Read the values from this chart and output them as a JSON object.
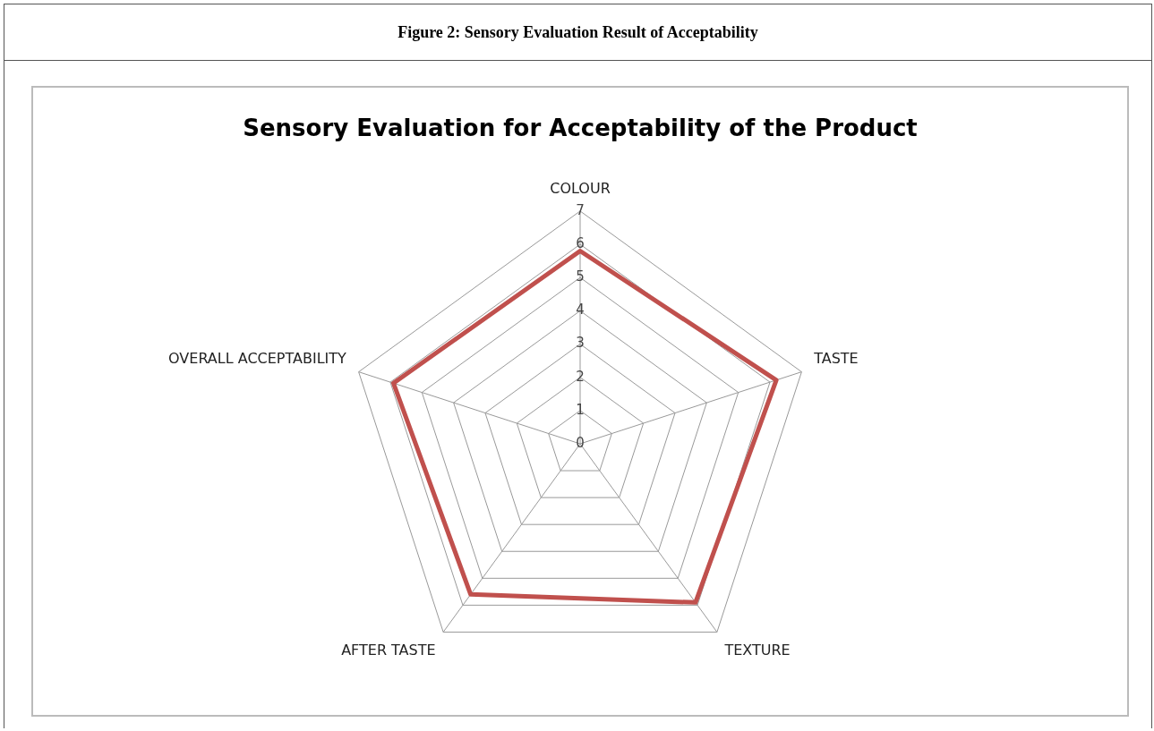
{
  "chart_data": {
    "type": "radar",
    "title": "Sensory Evaluation for Acceptability of the Product",
    "annotations": [
      "Figure 2: Sensory Evaluation Result of Acceptability"
    ],
    "categories": [
      "COLOUR",
      "TASTE",
      "TEXTURE",
      "AFTER TASTE",
      "OVERALL ACCEPTABILITY"
    ],
    "series": [
      {
        "color": "#c0504d",
        "values": [
          5.8,
          6.2,
          5.9,
          5.6,
          5.9
        ]
      }
    ],
    "ylim": [
      0,
      7
    ],
    "yticks": [
      0,
      1,
      2,
      3,
      4,
      5,
      6,
      7
    ],
    "grid": true,
    "legend": false,
    "marker": "none",
    "line_style": "solid"
  }
}
